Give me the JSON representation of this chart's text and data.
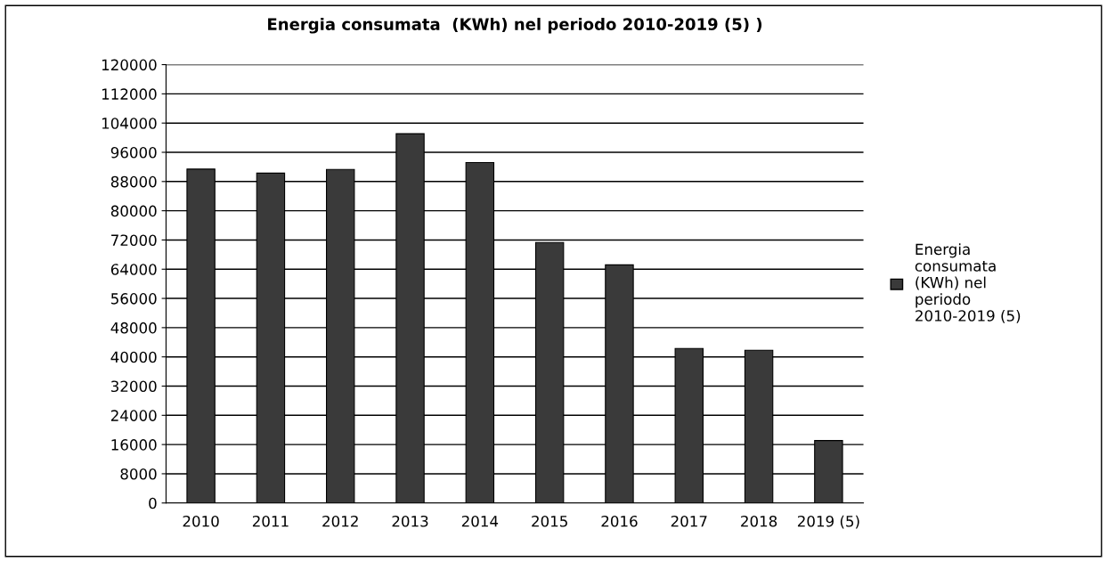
{
  "chart_data": {
    "type": "bar",
    "title": "Energia consumata  (KWh) nel periodo 2010-2019 (5) )",
    "categories": [
      "2010",
      "2011",
      "2012",
      "2013",
      "2014",
      "2015",
      "2016",
      "2017",
      "2018",
      "2019 (5)"
    ],
    "series": [
      {
        "name": "Energia consumata (KWh) nel periodo 2010-2019 (5)",
        "color": "#3a3a3a",
        "values": [
          91400,
          90300,
          91300,
          101100,
          93200,
          71300,
          65200,
          42300,
          41800,
          17100
        ]
      }
    ],
    "ylim": [
      0,
      120000
    ],
    "yticks": [
      0,
      8000,
      16000,
      24000,
      32000,
      40000,
      48000,
      56000,
      64000,
      72000,
      80000,
      88000,
      96000,
      104000,
      112000,
      120000
    ],
    "grid": "y",
    "legend": "right"
  }
}
